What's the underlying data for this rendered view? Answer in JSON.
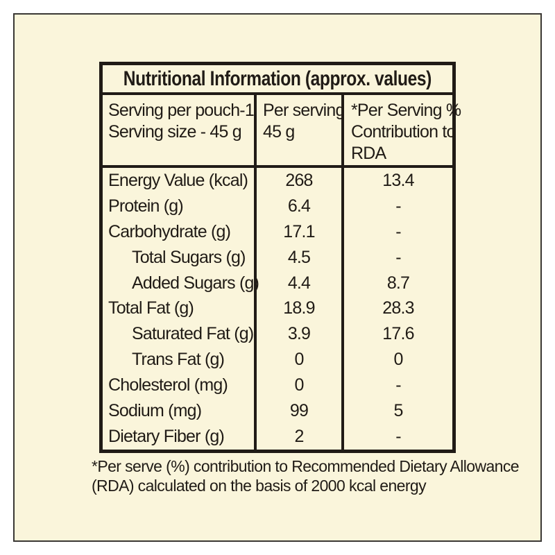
{
  "title": "Nutritional Information (approx. values)",
  "header": {
    "serving": {
      "line1": "Serving per pouch-1",
      "line2": "Serving size - 45 g"
    },
    "per_serving": {
      "line1": "Per serving",
      "line2": "45 g"
    },
    "rda": {
      "line1": "*Per Serving %",
      "line2": "Contribution to",
      "line3": "RDA"
    }
  },
  "rows": [
    {
      "label": "Energy Value (kcal)",
      "indent": false,
      "per_serving": "268",
      "rda": "13.4"
    },
    {
      "label": "Protein (g)",
      "indent": false,
      "per_serving": "6.4",
      "rda": "-"
    },
    {
      "label": "Carbohydrate (g)",
      "indent": false,
      "per_serving": "17.1",
      "rda": "-"
    },
    {
      "label": "Total Sugars (g)",
      "indent": true,
      "per_serving": "4.5",
      "rda": "-"
    },
    {
      "label": "Added Sugars (g)",
      "indent": true,
      "per_serving": "4.4",
      "rda": "8.7"
    },
    {
      "label": "Total Fat (g)",
      "indent": false,
      "per_serving": "18.9",
      "rda": "28.3"
    },
    {
      "label": "Saturated Fat (g)",
      "indent": true,
      "per_serving": "3.9",
      "rda": "17.6"
    },
    {
      "label": "Trans Fat (g)",
      "indent": true,
      "per_serving": "0",
      "rda": "0"
    },
    {
      "label": "Cholesterol (mg)",
      "indent": false,
      "per_serving": "0",
      "rda": "-"
    },
    {
      "label": "Sodium (mg)",
      "indent": false,
      "per_serving": "99",
      "rda": "5"
    },
    {
      "label": "Dietary Fiber (g)",
      "indent": false,
      "per_serving": "2",
      "rda": "-"
    }
  ],
  "footnote": {
    "line1": "*Per serve (%) contribution to Recommended Dietary Allowance",
    "line2": "(RDA) calculated on the basis of 2000 kcal energy"
  },
  "colors": {
    "page": "#FFFFFF",
    "label_background": "#FAF5DB",
    "ink": "#201B16",
    "frame_border": "#3A3734"
  }
}
